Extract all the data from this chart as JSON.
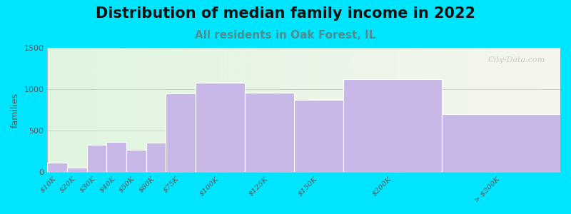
{
  "title": "Distribution of median family income in 2022",
  "subtitle": "All residents in Oak Forest, IL",
  "ylabel": "families",
  "categories": [
    "$10K",
    "$20K",
    "$30K",
    "$40K",
    "$50K",
    "$60K",
    "$75K",
    "$100K",
    "$125K",
    "$150K",
    "$200K",
    "> $200K"
  ],
  "values": [
    110,
    55,
    330,
    360,
    265,
    355,
    950,
    1080,
    960,
    870,
    1120,
    700
  ],
  "bar_lefts": [
    0,
    10,
    20,
    30,
    40,
    50,
    60,
    75,
    100,
    125,
    150,
    200
  ],
  "bar_widths": [
    10,
    10,
    10,
    10,
    10,
    10,
    15,
    25,
    25,
    25,
    50,
    60
  ],
  "bar_color": "#c8b8e8",
  "bar_edge_color": "#ffffff",
  "background_outer": "#00e5ff",
  "ylim": [
    0,
    1500
  ],
  "yticks": [
    0,
    500,
    1000,
    1500
  ],
  "xlim": [
    0,
    260
  ],
  "title_fontsize": 15,
  "subtitle_fontsize": 11,
  "subtitle_color": "#4a9090",
  "watermark": "City-Data.com",
  "ylabel_color": "#555555",
  "tick_label_color": "#555555",
  "bg_left_color": "#dff5df",
  "bg_right_color": "#f5f5ee",
  "grid_color": "#cccccc"
}
